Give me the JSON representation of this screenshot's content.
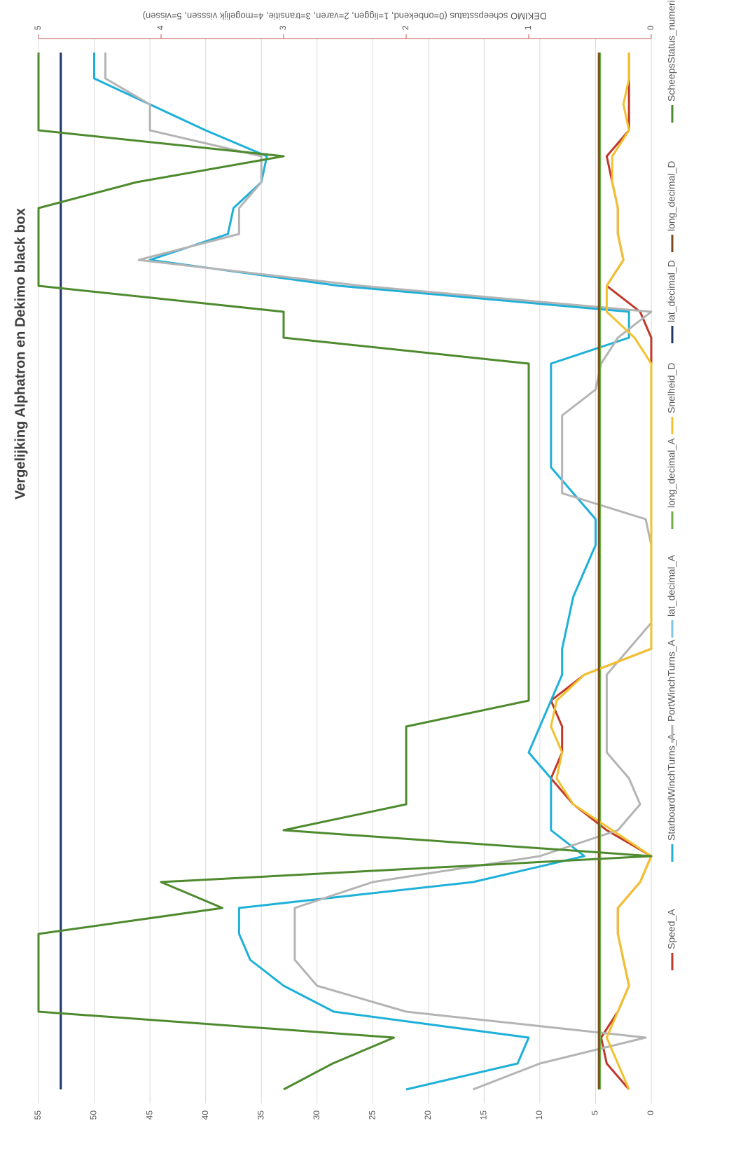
{
  "chart_data": {
    "type": "line",
    "title": "Vergelijking Alphatron en Dekimo black box",
    "y2_label": "DEKIMO scheepsstatus (0=onbekend, 1=liggen, 2=varen, 3=transitie, 4=mogelijk visssen, 5=vissen)",
    "categories": [
      null,
      null,
      null,
      null,
      null,
      null,
      null,
      null,
      null,
      null,
      null,
      null,
      null,
      null,
      null,
      null,
      null,
      null,
      null,
      null,
      null,
      null,
      null,
      null,
      null,
      null,
      null,
      null,
      null,
      null,
      null,
      null,
      null,
      null,
      null,
      null,
      null,
      null,
      null,
      null,
      null
    ],
    "ylim": [
      0,
      55
    ],
    "yticks": [
      0,
      5,
      10,
      15,
      20,
      25,
      30,
      35,
      40,
      45,
      50,
      55
    ],
    "y2lim": [
      0,
      5
    ],
    "y2ticks": [
      0,
      1,
      2,
      3,
      4,
      5
    ],
    "grid": true,
    "legend": "bottom",
    "series": [
      {
        "name": "Speed_A",
        "color": "#c0392b",
        "values": [
          2,
          4,
          4.5,
          3,
          2,
          2.5,
          3,
          3,
          1,
          0,
          4,
          7,
          9,
          8,
          8,
          9,
          6,
          0,
          0,
          0,
          0,
          0,
          0,
          0,
          0,
          0,
          0,
          0,
          0,
          0,
          1,
          4,
          2.5,
          3,
          3,
          3.5,
          4,
          2,
          2,
          2,
          2
        ]
      },
      {
        "name": "StarboardWinchTurns_A",
        "color": "#1fb0d8",
        "values": [
          22,
          12,
          11,
          28.5,
          33,
          36,
          37,
          37,
          16,
          6,
          9,
          9,
          9,
          11,
          10,
          9,
          8,
          8,
          7.5,
          7,
          6,
          5,
          5,
          7,
          9,
          9,
          9,
          9,
          9,
          2,
          2,
          28,
          45,
          38,
          37.5,
          35,
          34.5,
          40,
          45,
          50,
          50
        ]
      },
      {
        "name": "PortWinchTurns_A",
        "color": "#b4b4b4",
        "values": [
          16,
          10,
          0.5,
          22,
          30,
          32,
          32,
          32,
          25,
          10,
          3,
          1,
          2,
          4,
          4,
          4,
          4,
          2,
          0,
          0,
          0,
          0,
          0.5,
          8,
          8,
          8,
          8,
          5,
          4.5,
          3,
          0,
          26,
          46,
          37,
          37,
          35,
          35,
          45,
          45,
          49,
          49
        ]
      },
      {
        "name": "lat_decimal_A",
        "color": "#7fc6e6",
        "values": [
          53,
          53,
          53,
          53,
          53,
          53,
          53,
          53,
          53,
          53,
          53,
          53,
          53,
          53,
          53,
          53,
          53,
          53,
          53,
          53,
          53,
          53,
          53,
          53,
          53,
          53,
          53,
          53,
          53,
          53,
          53,
          53,
          53,
          53,
          53,
          53,
          53,
          53,
          53,
          53,
          53
        ]
      },
      {
        "name": "long_decimal_A",
        "color": "#70ad47",
        "values": [
          4.6,
          4.6,
          4.6,
          4.6,
          4.6,
          4.6,
          4.6,
          4.6,
          4.6,
          4.6,
          4.6,
          4.6,
          4.6,
          4.6,
          4.6,
          4.6,
          4.6,
          4.6,
          4.6,
          4.6,
          4.6,
          4.6,
          4.6,
          4.6,
          4.6,
          4.6,
          4.6,
          4.6,
          4.6,
          4.6,
          4.6,
          4.6,
          4.6,
          4.6,
          4.6,
          4.6,
          4.6,
          4.6,
          4.6,
          4.6,
          4.6
        ]
      },
      {
        "name": "Snelheid_D",
        "color": "#f2c12e",
        "values": [
          2,
          3,
          4,
          3,
          2,
          2.5,
          3,
          3,
          1,
          0,
          3.5,
          7,
          8.5,
          8,
          9,
          8.5,
          6,
          0,
          0,
          0,
          0,
          0,
          0,
          0,
          0,
          0,
          0,
          0,
          0,
          1.5,
          4,
          4,
          2.5,
          3,
          3,
          3.5,
          3.5,
          2,
          2.5,
          2,
          2
        ]
      },
      {
        "name": "lat_decimal_D",
        "color": "#1f3864",
        "values": [
          53,
          53,
          53,
          53,
          53,
          53,
          53,
          53,
          53,
          53,
          53,
          53,
          53,
          53,
          53,
          53,
          53,
          53,
          53,
          53,
          53,
          53,
          53,
          53,
          53,
          53,
          53,
          53,
          53,
          53,
          53,
          53,
          53,
          53,
          53,
          53,
          53,
          53,
          53,
          53,
          53
        ]
      },
      {
        "name": "long_decimal_D",
        "color": "#7b4a1e",
        "values": [
          4.7,
          4.7,
          4.7,
          4.7,
          4.7,
          4.7,
          4.7,
          4.7,
          4.7,
          4.7,
          4.7,
          4.7,
          4.7,
          4.7,
          4.7,
          4.7,
          4.7,
          4.7,
          4.7,
          4.7,
          4.7,
          4.7,
          4.7,
          4.7,
          4.7,
          4.7,
          4.7,
          4.7,
          4.7,
          4.7,
          4.7,
          4.7,
          4.7,
          4.7,
          4.7,
          4.7,
          4.7,
          4.7,
          4.7,
          4.7,
          4.7
        ]
      },
      {
        "name": "ScheepsStatus_numeriek_D",
        "color": "#4e8a2e",
        "axis": "y2",
        "values": [
          3,
          2.6,
          2.1,
          5,
          5,
          5,
          5,
          3.5,
          4,
          0,
          3,
          2,
          2,
          2,
          2,
          1,
          1,
          1,
          1,
          1,
          1,
          1,
          1,
          1,
          1,
          1,
          1,
          1,
          1,
          3,
          3,
          5,
          5,
          5,
          5,
          4.2,
          3,
          5,
          5,
          5,
          5
        ]
      }
    ]
  }
}
